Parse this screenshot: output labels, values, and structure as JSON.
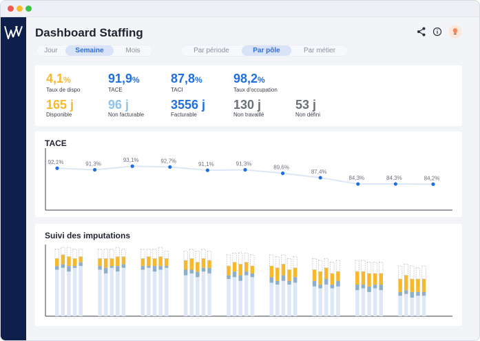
{
  "header": {
    "title": "Dashboard Staffing",
    "period_tabs": [
      {
        "label": "Jour",
        "active": false
      },
      {
        "label": "Semaine",
        "active": true
      },
      {
        "label": "Mois",
        "active": false
      }
    ],
    "view_tabs": [
      {
        "label": "Par période",
        "active": false
      },
      {
        "label": "Par pôle",
        "active": true
      },
      {
        "label": "Par métier",
        "active": false
      }
    ],
    "icons": [
      "share-icon",
      "info-icon",
      "lightbulb-icon"
    ]
  },
  "kpis": {
    "row1": [
      {
        "value": "4,1",
        "unit": "%",
        "label": "Taux de dispo",
        "color": "#f5b82e"
      },
      {
        "value": "91,9",
        "unit": "%",
        "label": "TACE",
        "color": "#1f6fe0"
      },
      {
        "value": "87,8",
        "unit": "%",
        "label": "TACI",
        "color": "#1f6fe0"
      },
      {
        "value": "98,2",
        "unit": "%",
        "label": "Taux d'occupation",
        "color": "#1f6fe0"
      }
    ],
    "row2": [
      {
        "value": "165",
        "unit": " j",
        "label": "Disponible",
        "color": "#f5b82e"
      },
      {
        "value": "96",
        "unit": " j",
        "label": "Non facturable",
        "color": "#8cc4ec"
      },
      {
        "value": "3556",
        "unit": " j",
        "label": "Facturable",
        "color": "#1f6fe0"
      },
      {
        "value": "130",
        "unit": " j",
        "label": "Non travaillé",
        "color": "#6b6f78"
      },
      {
        "value": "53",
        "unit": " j",
        "label": "Non défini",
        "color": "#6b6f78"
      }
    ]
  },
  "tace_card": {
    "title": "TACE"
  },
  "imputations_card": {
    "title": "Suivi des imputations"
  },
  "chart_data": [
    {
      "type": "line",
      "title": "TACE",
      "x": [
        1,
        2,
        3,
        4,
        5,
        6,
        7,
        8,
        9,
        10,
        11
      ],
      "values": [
        92.1,
        91.3,
        93.1,
        92.7,
        91.1,
        91.3,
        89.6,
        87.4,
        84.3,
        84.3,
        84.2
      ],
      "labels": [
        "92,1%",
        "91,3%",
        "93,1%",
        "92,7%",
        "91,1%",
        "91,3%",
        "89,6%",
        "87,4%",
        "84,3%",
        "84,3%",
        "84,2%"
      ],
      "ylim": [
        70,
        100
      ],
      "grid": false,
      "colors": {
        "line": "#dde7f5",
        "point": "#1f6fe0"
      }
    },
    {
      "type": "bar",
      "title": "Suivi des imputations",
      "stacked": true,
      "groups": 9,
      "bars_per_group": 5,
      "series": [
        "Facturable",
        "Non facturable",
        "Disponible",
        "Non défini"
      ],
      "colors": {
        "Facturable": "#dde7f5",
        "Non facturable": "#8cb0cc",
        "Disponible": "#f5b82e",
        "Non défini": "#c9ccd3"
      },
      "data": [
        [
          [
            25,
            2,
            4,
            5
          ],
          [
            26,
            2,
            5,
            4
          ],
          [
            24,
            3,
            5,
            5
          ],
          [
            26,
            1,
            4,
            5
          ],
          [
            27,
            2,
            3,
            4
          ]
        ],
        [
          [
            25,
            2,
            4,
            5
          ],
          [
            23,
            3,
            5,
            5
          ],
          [
            26,
            1,
            4,
            5
          ],
          [
            24,
            3,
            5,
            5
          ],
          [
            26,
            2,
            4,
            4
          ]
        ],
        [
          [
            25,
            2,
            4,
            5
          ],
          [
            26,
            1,
            5,
            4
          ],
          [
            24,
            3,
            4,
            5
          ],
          [
            25,
            2,
            5,
            5
          ],
          [
            26,
            1,
            4,
            4
          ]
        ],
        [
          [
            22,
            3,
            5,
            5
          ],
          [
            23,
            2,
            6,
            5
          ],
          [
            21,
            3,
            5,
            6
          ],
          [
            24,
            2,
            5,
            5
          ],
          [
            23,
            3,
            4,
            5
          ]
        ],
        [
          [
            20,
            2,
            5,
            6
          ],
          [
            21,
            3,
            5,
            5
          ],
          [
            19,
            3,
            6,
            6
          ],
          [
            22,
            2,
            5,
            5
          ],
          [
            21,
            2,
            4,
            6
          ]
        ],
        [
          [
            18,
            3,
            6,
            6
          ],
          [
            17,
            2,
            7,
            6
          ],
          [
            19,
            3,
            6,
            5
          ],
          [
            17,
            2,
            6,
            6
          ],
          [
            18,
            3,
            5,
            6
          ]
        ],
        [
          [
            16,
            3,
            6,
            6
          ],
          [
            15,
            2,
            7,
            6
          ],
          [
            17,
            3,
            6,
            5
          ],
          [
            15,
            2,
            6,
            6
          ],
          [
            16,
            3,
            5,
            6
          ]
        ],
        [
          [
            14,
            3,
            7,
            6
          ],
          [
            15,
            2,
            7,
            6
          ],
          [
            13,
            3,
            7,
            6
          ],
          [
            15,
            2,
            6,
            6
          ],
          [
            14,
            3,
            6,
            6
          ]
        ],
        [
          [
            11,
            2,
            7,
            7
          ],
          [
            12,
            2,
            8,
            6
          ],
          [
            10,
            3,
            7,
            7
          ],
          [
            11,
            2,
            7,
            6
          ],
          [
            11,
            2,
            7,
            7
          ]
        ]
      ]
    }
  ]
}
